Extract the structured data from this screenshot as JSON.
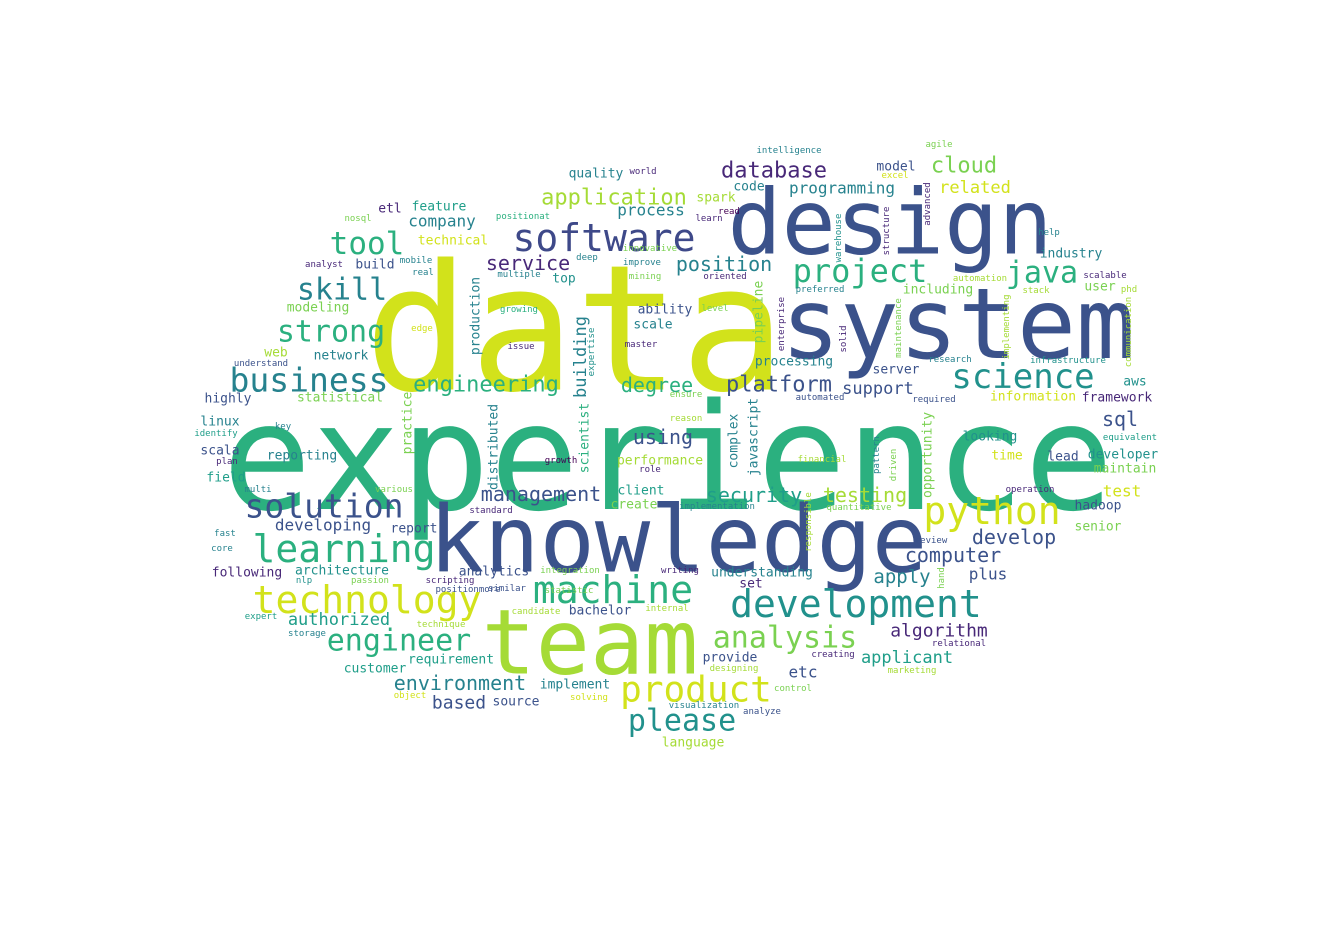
{
  "word_cloud": {
    "colors": {
      "yellow": "#d2e21b",
      "lime": "#a5db36",
      "green": "#2bb07f",
      "teal": "#21918c",
      "blue": "#3e4989",
      "navy": "#3b528b",
      "purple": "#440154",
      "lightgreen": "#7ad151",
      "tealgreen": "#1f9e89",
      "darkteal": "#26828e",
      "indigo": "#482878"
    },
    "words": [
      {
        "text": "data",
        "color": "yellow"
      },
      {
        "text": "experience",
        "color": "green"
      },
      {
        "text": "system",
        "color": "navy"
      },
      {
        "text": "design",
        "color": "navy"
      },
      {
        "text": "knowledge",
        "color": "navy"
      },
      {
        "text": "team",
        "color": "lime"
      },
      {
        "text": "software",
        "color": "blue"
      },
      {
        "text": "machine",
        "color": "green"
      },
      {
        "text": "development",
        "color": "teal"
      },
      {
        "text": "technology",
        "color": "yellow"
      },
      {
        "text": "learning",
        "color": "green"
      },
      {
        "text": "solution",
        "color": "navy"
      },
      {
        "text": "python",
        "color": "yellow"
      },
      {
        "text": "product",
        "color": "yellow"
      },
      {
        "text": "science",
        "color": "teal"
      },
      {
        "text": "business",
        "color": "darkteal"
      },
      {
        "text": "engineer",
        "color": "green"
      },
      {
        "text": "analysis",
        "color": "lightgreen"
      },
      {
        "text": "project",
        "color": "green"
      },
      {
        "text": "tool",
        "color": "green"
      },
      {
        "text": "please",
        "color": "teal"
      },
      {
        "text": "java",
        "color": "green"
      },
      {
        "text": "strong",
        "color": "green"
      },
      {
        "text": "skill",
        "color": "darkteal"
      },
      {
        "text": "application",
        "color": "lime"
      },
      {
        "text": "database",
        "color": "indigo"
      },
      {
        "text": "engineering",
        "color": "green"
      },
      {
        "text": "platform",
        "color": "navy"
      },
      {
        "text": "cloud",
        "color": "lightgreen"
      },
      {
        "text": "management",
        "color": "navy"
      },
      {
        "text": "environment",
        "color": "darkteal"
      },
      {
        "text": "position",
        "color": "darkteal"
      },
      {
        "text": "service",
        "color": "indigo"
      },
      {
        "text": "algorithm",
        "color": "indigo"
      },
      {
        "text": "degree",
        "color": "green"
      },
      {
        "text": "develop",
        "color": "navy"
      },
      {
        "text": "computer",
        "color": "navy"
      },
      {
        "text": "testing",
        "color": "lime"
      },
      {
        "text": "security",
        "color": "tealgreen"
      },
      {
        "text": "using",
        "color": "navy"
      },
      {
        "text": "applicant",
        "color": "tealgreen"
      },
      {
        "text": "apply",
        "color": "darkteal"
      },
      {
        "text": "building",
        "color": "darkteal"
      },
      {
        "text": "sql",
        "color": "navy"
      },
      {
        "text": "programming",
        "color": "darkteal"
      },
      {
        "text": "authorized",
        "color": "tealgreen"
      },
      {
        "text": "related",
        "color": "yellow"
      },
      {
        "text": "support",
        "color": "navy"
      },
      {
        "text": "based",
        "color": "navy"
      },
      {
        "text": "developing",
        "color": "navy"
      },
      {
        "text": "plus",
        "color": "navy"
      },
      {
        "text": "aws",
        "color": "teal"
      },
      {
        "text": "test",
        "color": "yellow"
      },
      {
        "text": "process",
        "color": "darkteal"
      },
      {
        "text": "company",
        "color": "darkteal"
      },
      {
        "text": "etc",
        "color": "navy"
      },
      {
        "text": "scale",
        "color": "darkteal"
      },
      {
        "text": "ability",
        "color": "navy"
      },
      {
        "text": "production",
        "color": "darkteal"
      },
      {
        "text": "framework",
        "color": "indigo"
      },
      {
        "text": "processing",
        "color": "darkteal"
      },
      {
        "text": "javascript",
        "color": "darkteal"
      },
      {
        "text": "looking",
        "color": "teal"
      },
      {
        "text": "pipeline",
        "color": "lightgreen"
      },
      {
        "text": "distributed",
        "color": "darkteal"
      },
      {
        "text": "opportunity",
        "color": "lightgreen"
      },
      {
        "text": "industry",
        "color": "darkteal"
      },
      {
        "text": "information",
        "color": "yellow"
      },
      {
        "text": "architecture",
        "color": "teal"
      },
      {
        "text": "including",
        "color": "lightgreen"
      },
      {
        "text": "model",
        "color": "navy"
      },
      {
        "text": "quality",
        "color": "darkteal"
      },
      {
        "text": "feature",
        "color": "tealgreen"
      },
      {
        "text": "code",
        "color": "darkteal"
      },
      {
        "text": "spark",
        "color": "lime"
      },
      {
        "text": "analytics",
        "color": "navy"
      },
      {
        "text": "scientist",
        "color": "green"
      },
      {
        "text": "understanding",
        "color": "darkteal"
      },
      {
        "text": "complex",
        "color": "darkteal"
      },
      {
        "text": "performance",
        "color": "lime"
      },
      {
        "text": "maintain",
        "color": "lightgreen"
      },
      {
        "text": "developer",
        "color": "teal"
      },
      {
        "text": "reporting",
        "color": "darkteal"
      },
      {
        "text": "lead",
        "color": "navy"
      },
      {
        "text": "client",
        "color": "tealgreen"
      },
      {
        "text": "create",
        "color": "lightgreen"
      },
      {
        "text": "senior",
        "color": "lightgreen"
      },
      {
        "text": "hadoop",
        "color": "navy"
      },
      {
        "text": "customer",
        "color": "tealgreen"
      },
      {
        "text": "requirement",
        "color": "tealgreen"
      },
      {
        "text": "implement",
        "color": "darkteal"
      },
      {
        "text": "provide",
        "color": "navy"
      },
      {
        "text": "source",
        "color": "navy"
      },
      {
        "text": "bachelor",
        "color": "navy"
      },
      {
        "text": "report",
        "color": "navy"
      },
      {
        "text": "highly",
        "color": "navy"
      },
      {
        "text": "linux",
        "color": "darkteal"
      },
      {
        "text": "scala",
        "color": "navy"
      },
      {
        "text": "field",
        "color": "tealgreen"
      },
      {
        "text": "following",
        "color": "indigo"
      },
      {
        "text": "network",
        "color": "darkteal"
      },
      {
        "text": "web",
        "color": "lime"
      },
      {
        "text": "modeling",
        "color": "lightgreen"
      },
      {
        "text": "statistical",
        "color": "lightgreen"
      },
      {
        "text": "build",
        "color": "navy"
      },
      {
        "text": "etl",
        "color": "indigo"
      },
      {
        "text": "technical",
        "color": "yellow"
      },
      {
        "text": "server",
        "color": "navy"
      },
      {
        "text": "time",
        "color": "yellow"
      },
      {
        "text": "set",
        "color": "indigo"
      },
      {
        "text": "top",
        "color": "teal"
      },
      {
        "text": "practice",
        "color": "lightgreen"
      },
      {
        "text": "user",
        "color": "lightgreen"
      },
      {
        "text": "language",
        "color": "lime"
      },
      {
        "text": "equivalent",
        "color": "tealgreen"
      },
      {
        "text": "world",
        "color": "indigo"
      },
      {
        "text": "learn",
        "color": "indigo"
      },
      {
        "text": "read",
        "color": "purple"
      },
      {
        "text": "excel",
        "color": "yellow"
      },
      {
        "text": "advanced",
        "color": "indigo"
      },
      {
        "text": "structure",
        "color": "indigo"
      },
      {
        "text": "warehouse",
        "color": "teal"
      },
      {
        "text": "help",
        "color": "darkteal"
      },
      {
        "text": "agile",
        "color": "lightgreen"
      },
      {
        "text": "intelligence",
        "color": "darkteal"
      },
      {
        "text": "nosql",
        "color": "lightgreen"
      },
      {
        "text": "positionat",
        "color": "green"
      },
      {
        "text": "analyst",
        "color": "indigo"
      },
      {
        "text": "real",
        "color": "darkteal"
      },
      {
        "text": "mobile",
        "color": "darkteal"
      },
      {
        "text": "multiple",
        "color": "darkteal"
      },
      {
        "text": "deep",
        "color": "darkteal"
      },
      {
        "text": "improve",
        "color": "darkteal"
      },
      {
        "text": "mining",
        "color": "lightgreen"
      },
      {
        "text": "innovative",
        "color": "lightgreen"
      },
      {
        "text": "oriented",
        "color": "indigo"
      },
      {
        "text": "growing",
        "color": "green"
      },
      {
        "text": "level",
        "color": "lightgreen"
      },
      {
        "text": "enterprise",
        "color": "indigo"
      },
      {
        "text": "preferred",
        "color": "darkteal"
      },
      {
        "text": "solid",
        "color": "indigo"
      },
      {
        "text": "maintenance",
        "color": "lightgreen"
      },
      {
        "text": "automation",
        "color": "lime"
      },
      {
        "text": "stack",
        "color": "lime"
      },
      {
        "text": "implementing",
        "color": "lime"
      },
      {
        "text": "scalable",
        "color": "indigo"
      },
      {
        "text": "phd",
        "color": "lime"
      },
      {
        "text": "communication",
        "color": "lime"
      },
      {
        "text": "edge",
        "color": "yellow"
      },
      {
        "text": "understand",
        "color": "navy"
      },
      {
        "text": "issue",
        "color": "indigo"
      },
      {
        "text": "expertise",
        "color": "teal"
      },
      {
        "text": "master",
        "color": "indigo"
      },
      {
        "text": "infrastructure",
        "color": "teal"
      },
      {
        "text": "research",
        "color": "darkteal"
      },
      {
        "text": "automated",
        "color": "navy"
      },
      {
        "text": "required",
        "color": "navy"
      },
      {
        "text": "ensure",
        "color": "lightgreen"
      },
      {
        "text": "reason",
        "color": "lime"
      },
      {
        "text": "key",
        "color": "darkteal"
      },
      {
        "text": "identify",
        "color": "tealgreen"
      },
      {
        "text": "plan",
        "color": "indigo"
      },
      {
        "text": "growth",
        "color": "purple"
      },
      {
        "text": "role",
        "color": "indigo"
      },
      {
        "text": "financial",
        "color": "lime"
      },
      {
        "text": "pattern",
        "color": "darkteal"
      },
      {
        "text": "driven",
        "color": "lightgreen"
      },
      {
        "text": "multi",
        "color": "darkteal"
      },
      {
        "text": "various",
        "color": "lightgreen"
      },
      {
        "text": "standard",
        "color": "indigo"
      },
      {
        "text": "implementation",
        "color": "darkteal"
      },
      {
        "text": "quantitative",
        "color": "lightgreen"
      },
      {
        "text": "responsible",
        "color": "lime"
      },
      {
        "text": "operation",
        "color": "indigo"
      },
      {
        "text": "review",
        "color": "navy"
      },
      {
        "text": "fast",
        "color": "darkteal"
      },
      {
        "text": "core",
        "color": "darkteal"
      },
      {
        "text": "nlp",
        "color": "teal"
      },
      {
        "text": "passion",
        "color": "lightgreen"
      },
      {
        "text": "scripting",
        "color": "indigo"
      },
      {
        "text": "positionmore",
        "color": "navy"
      },
      {
        "text": "integration",
        "color": "lightgreen"
      },
      {
        "text": "statistic",
        "color": "lightgreen"
      },
      {
        "text": "writing",
        "color": "indigo"
      },
      {
        "text": "similar",
        "color": "navy"
      },
      {
        "text": "expert",
        "color": "tealgreen"
      },
      {
        "text": "storage",
        "color": "darkteal"
      },
      {
        "text": "technique",
        "color": "lime"
      },
      {
        "text": "candidate",
        "color": "lime"
      },
      {
        "text": "internal",
        "color": "lime"
      },
      {
        "text": "designing",
        "color": "lime"
      },
      {
        "text": "creating",
        "color": "indigo"
      },
      {
        "text": "relational",
        "color": "indigo"
      },
      {
        "text": "hand",
        "color": "lightgreen"
      },
      {
        "text": "marketing",
        "color": "lime"
      },
      {
        "text": "object",
        "color": "yellow"
      },
      {
        "text": "solving",
        "color": "yellow"
      },
      {
        "text": "control",
        "color": "lightgreen"
      },
      {
        "text": "visualization",
        "color": "darkteal"
      },
      {
        "text": "analyze",
        "color": "navy"
      }
    ]
  }
}
